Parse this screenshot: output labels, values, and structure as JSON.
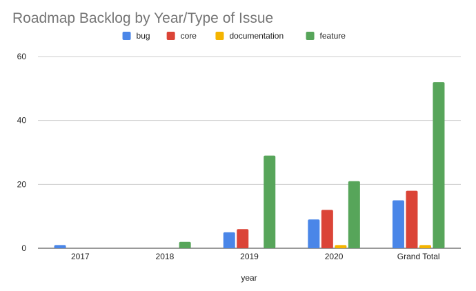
{
  "chart_data": {
    "type": "bar",
    "title": "Roadmap Backlog by Year/Type of Issue",
    "xlabel": "year",
    "ylabel": "",
    "categories": [
      "2017",
      "2018",
      "2019",
      "2020",
      "Grand Total"
    ],
    "series": [
      {
        "name": "bug",
        "color": "#4a86e8",
        "values": [
          1,
          0,
          5,
          9,
          15
        ]
      },
      {
        "name": "core",
        "color": "#db4437",
        "values": [
          0,
          0,
          6,
          12,
          18
        ]
      },
      {
        "name": "documentation",
        "color": "#f4b400",
        "values": [
          0,
          0,
          0,
          1,
          1
        ]
      },
      {
        "name": "feature",
        "color": "#57a55a",
        "values": [
          0,
          2,
          29,
          21,
          52
        ]
      }
    ],
    "ylim": [
      0,
      60
    ],
    "yticks": [
      0,
      20,
      40,
      60
    ],
    "grid": true,
    "legend": "top-center"
  }
}
